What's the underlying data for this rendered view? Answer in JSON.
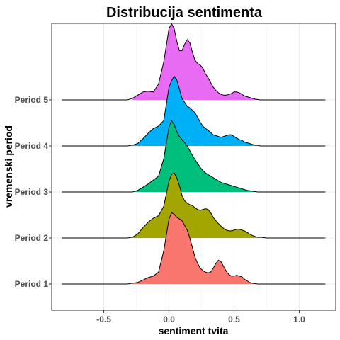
{
  "chart_data": {
    "type": "ridgeline",
    "title": "Distribucija sentimenta",
    "xlabel": "sentiment tvita",
    "ylabel": "vremenski period",
    "xlim": [
      -0.9,
      1.28
    ],
    "x_ticks": [
      -0.5,
      0.0,
      0.5,
      1.0
    ],
    "x_tick_labels": [
      "-0.5",
      "0.0",
      "0.5",
      "1.0"
    ],
    "grid": true,
    "legend": "none",
    "fill_range": [
      -0.3,
      0.7
    ],
    "x_grid": [
      -0.82,
      -0.6,
      -0.4,
      -0.32,
      -0.28,
      -0.24,
      -0.2,
      -0.16,
      -0.12,
      -0.08,
      -0.04,
      0.0,
      0.02,
      0.04,
      0.06,
      0.08,
      0.1,
      0.12,
      0.14,
      0.16,
      0.18,
      0.2,
      0.22,
      0.24,
      0.26,
      0.28,
      0.3,
      0.32,
      0.34,
      0.36,
      0.38,
      0.4,
      0.42,
      0.44,
      0.46,
      0.48,
      0.5,
      0.52,
      0.54,
      0.56,
      0.58,
      0.6,
      0.62,
      0.64,
      0.66,
      0.68,
      0.7,
      0.75,
      0.8,
      1.0,
      1.2
    ],
    "series": [
      {
        "name": "Period 1",
        "color": "#F8766D",
        "density": [
          0,
          0,
          0,
          0,
          0.01,
          0.02,
          0.05,
          0.08,
          0.1,
          0.15,
          0.42,
          0.82,
          0.9,
          0.88,
          0.84,
          0.82,
          0.8,
          0.74,
          0.68,
          0.58,
          0.46,
          0.34,
          0.26,
          0.2,
          0.17,
          0.15,
          0.14,
          0.15,
          0.2,
          0.26,
          0.3,
          0.28,
          0.22,
          0.16,
          0.12,
          0.1,
          0.1,
          0.11,
          0.1,
          0.09,
          0.06,
          0.04,
          0.02,
          0.01,
          0.005,
          0,
          0,
          0,
          0,
          0,
          0
        ]
      },
      {
        "name": "Period 2",
        "color": "#A3A500",
        "density": [
          0,
          0,
          0,
          0,
          0.01,
          0.05,
          0.13,
          0.2,
          0.25,
          0.28,
          0.4,
          0.72,
          0.8,
          0.82,
          0.76,
          0.66,
          0.54,
          0.47,
          0.44,
          0.42,
          0.41,
          0.38,
          0.36,
          0.35,
          0.36,
          0.37,
          0.36,
          0.32,
          0.26,
          0.22,
          0.18,
          0.15,
          0.12,
          0.1,
          0.09,
          0.09,
          0.1,
          0.11,
          0.11,
          0.1,
          0.09,
          0.07,
          0.05,
          0.03,
          0.02,
          0.01,
          0.01,
          0,
          0,
          0,
          0
        ]
      },
      {
        "name": "Period 3",
        "color": "#00BF7D",
        "density": [
          0,
          0,
          0,
          0,
          0,
          0.02,
          0.06,
          0.1,
          0.15,
          0.2,
          0.42,
          0.82,
          0.9,
          0.85,
          0.76,
          0.7,
          0.66,
          0.62,
          0.58,
          0.52,
          0.46,
          0.41,
          0.36,
          0.31,
          0.27,
          0.24,
          0.22,
          0.2,
          0.18,
          0.16,
          0.14,
          0.12,
          0.11,
          0.1,
          0.09,
          0.08,
          0.07,
          0.06,
          0.05,
          0.04,
          0.03,
          0.02,
          0.015,
          0.01,
          0.005,
          0,
          0,
          0,
          0,
          0,
          0
        ]
      },
      {
        "name": "Period 4",
        "color": "#00B0F6",
        "density": [
          0,
          0,
          0,
          0,
          0.01,
          0.03,
          0.09,
          0.16,
          0.22,
          0.25,
          0.32,
          0.74,
          0.82,
          0.88,
          0.83,
          0.72,
          0.6,
          0.55,
          0.5,
          0.48,
          0.45,
          0.42,
          0.36,
          0.3,
          0.25,
          0.22,
          0.2,
          0.17,
          0.14,
          0.13,
          0.12,
          0.11,
          0.12,
          0.13,
          0.14,
          0.14,
          0.12,
          0.1,
          0.08,
          0.07,
          0.05,
          0.04,
          0.03,
          0.02,
          0.01,
          0.01,
          0,
          0,
          0,
          0,
          0
        ]
      },
      {
        "name": "Period 5",
        "color": "#E76BF3",
        "density": [
          0,
          0,
          0,
          0,
          0.02,
          0.06,
          0.1,
          0.11,
          0.1,
          0.2,
          0.48,
          0.9,
          0.96,
          0.9,
          0.74,
          0.62,
          0.62,
          0.7,
          0.76,
          0.72,
          0.6,
          0.5,
          0.46,
          0.44,
          0.4,
          0.33,
          0.28,
          0.22,
          0.16,
          0.12,
          0.09,
          0.07,
          0.06,
          0.06,
          0.07,
          0.08,
          0.1,
          0.1,
          0.09,
          0.07,
          0.05,
          0.04,
          0.03,
          0.02,
          0.01,
          0.005,
          0,
          0,
          0,
          0,
          0
        ]
      }
    ]
  }
}
